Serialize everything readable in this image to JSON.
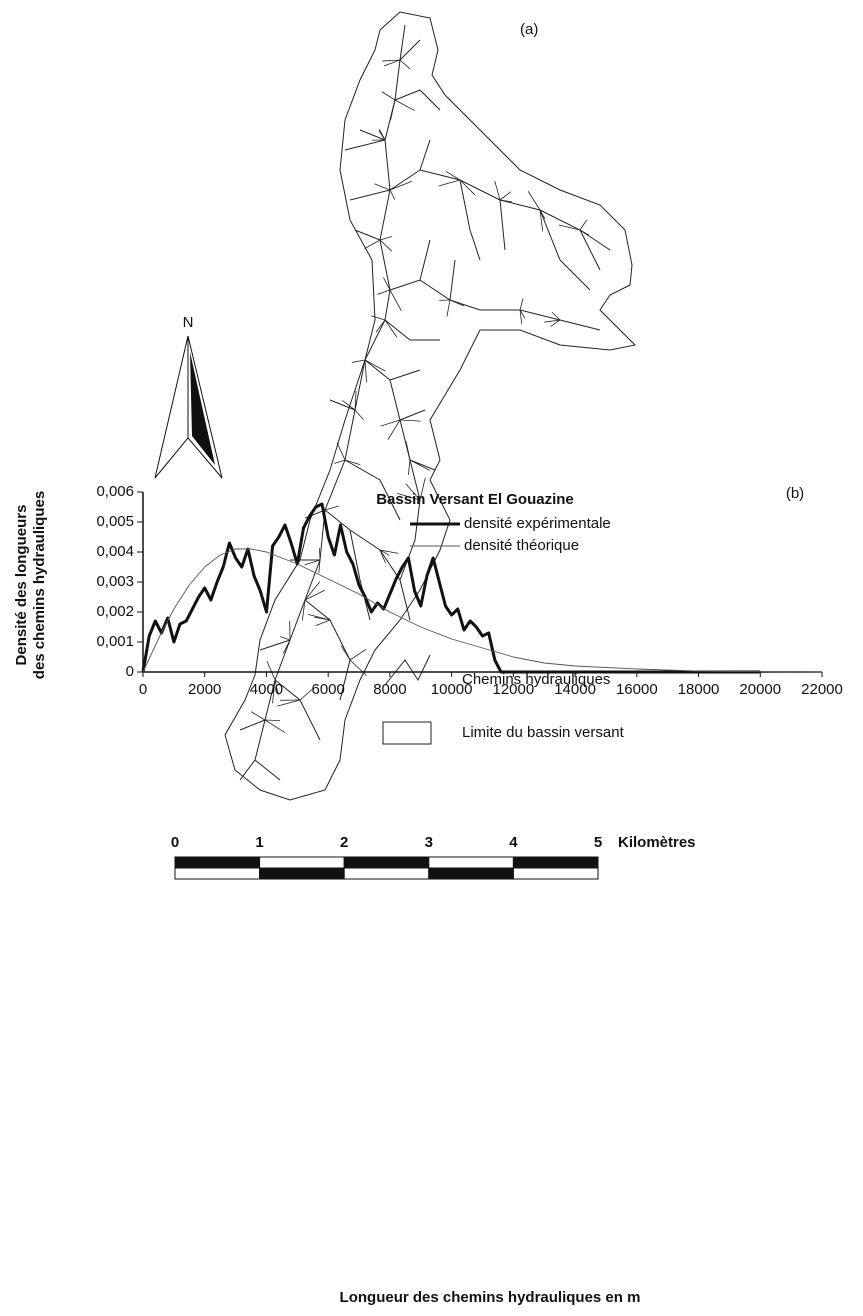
{
  "map": {
    "panel_label": "(a)",
    "north_label": "N",
    "legend": [
      "Chemins hydrauliques",
      "Limite du bassin versant"
    ],
    "scale": {
      "labels": [
        0,
        1,
        2,
        3,
        4,
        5
      ],
      "unit": "Kilomètres"
    }
  },
  "chart_data": {
    "type": "line",
    "title": "Bassin Versant El Gouazine",
    "panel_label": "(b)",
    "xlabel": "Longueur des chemins hydrauliques en m",
    "ylabel": [
      "Densité  des longueurs",
      "des chemins hydrauliques"
    ],
    "xlim": [
      0,
      22000
    ],
    "ylim": [
      0,
      0.006
    ],
    "xticks": [
      0,
      2000,
      4000,
      6000,
      8000,
      10000,
      12000,
      14000,
      16000,
      18000,
      20000,
      22000
    ],
    "yticks": [
      0,
      {
        "value": 0.001,
        "label": "0,001"
      },
      {
        "value": 0.002,
        "label": "0,002"
      },
      {
        "value": 0.003,
        "label": "0,003"
      },
      {
        "value": 0.004,
        "label": "0,004"
      },
      {
        "value": 0.005,
        "label": "0,005"
      },
      {
        "value": 0.006,
        "label": "0,006"
      }
    ],
    "series": [
      {
        "name": "densité expérimentale",
        "color": "#111111",
        "x": [
          0,
          200,
          400,
          600,
          800,
          1000,
          1200,
          1400,
          1600,
          1800,
          2000,
          2200,
          2400,
          2600,
          2800,
          3000,
          3200,
          3400,
          3600,
          3800,
          4000,
          4200,
          4400,
          4600,
          4800,
          5000,
          5200,
          5400,
          5600,
          5800,
          6000,
          6200,
          6400,
          6600,
          6800,
          7000,
          7200,
          7400,
          7600,
          7800,
          8000,
          8200,
          8400,
          8600,
          8800,
          9000,
          9200,
          9400,
          9600,
          9800,
          10000,
          10200,
          10400,
          10600,
          10800,
          11000,
          11200,
          11400,
          11600,
          12000,
          14000,
          16000,
          18000,
          20000
        ],
        "values": [
          0,
          0.0012,
          0.0017,
          0.0013,
          0.0018,
          0.001,
          0.0016,
          0.0017,
          0.0021,
          0.0025,
          0.0028,
          0.0024,
          0.003,
          0.0035,
          0.0043,
          0.0038,
          0.0035,
          0.0041,
          0.0032,
          0.0027,
          0.002,
          0.0042,
          0.0045,
          0.0049,
          0.0043,
          0.0036,
          0.0048,
          0.0052,
          0.0055,
          0.0056,
          0.0045,
          0.0039,
          0.0049,
          0.004,
          0.0036,
          0.0029,
          0.0025,
          0.002,
          0.0023,
          0.0021,
          0.0026,
          0.0031,
          0.0035,
          0.0038,
          0.0027,
          0.0022,
          0.0032,
          0.0038,
          0.003,
          0.0022,
          0.0019,
          0.0021,
          0.0014,
          0.0017,
          0.0015,
          0.0012,
          0.0013,
          0.0004,
          0,
          0,
          0,
          0,
          0,
          0
        ]
      },
      {
        "name": "densité théorique",
        "color": "#555555",
        "x": [
          0,
          500,
          1000,
          1500,
          2000,
          2500,
          3000,
          3500,
          4000,
          5000,
          6000,
          7000,
          8000,
          9000,
          10000,
          11000,
          12000,
          13000,
          14000,
          16000,
          18000,
          20000,
          22000
        ],
        "values": [
          0,
          0.0011,
          0.0021,
          0.0029,
          0.0035,
          0.0039,
          0.0041,
          0.0041,
          0.004,
          0.0036,
          0.0031,
          0.0026,
          0.002,
          0.0015,
          0.0011,
          0.0008,
          0.0005,
          0.0003,
          0.0002,
          0.0001,
          3e-05,
          1e-05,
          0
        ]
      }
    ]
  }
}
